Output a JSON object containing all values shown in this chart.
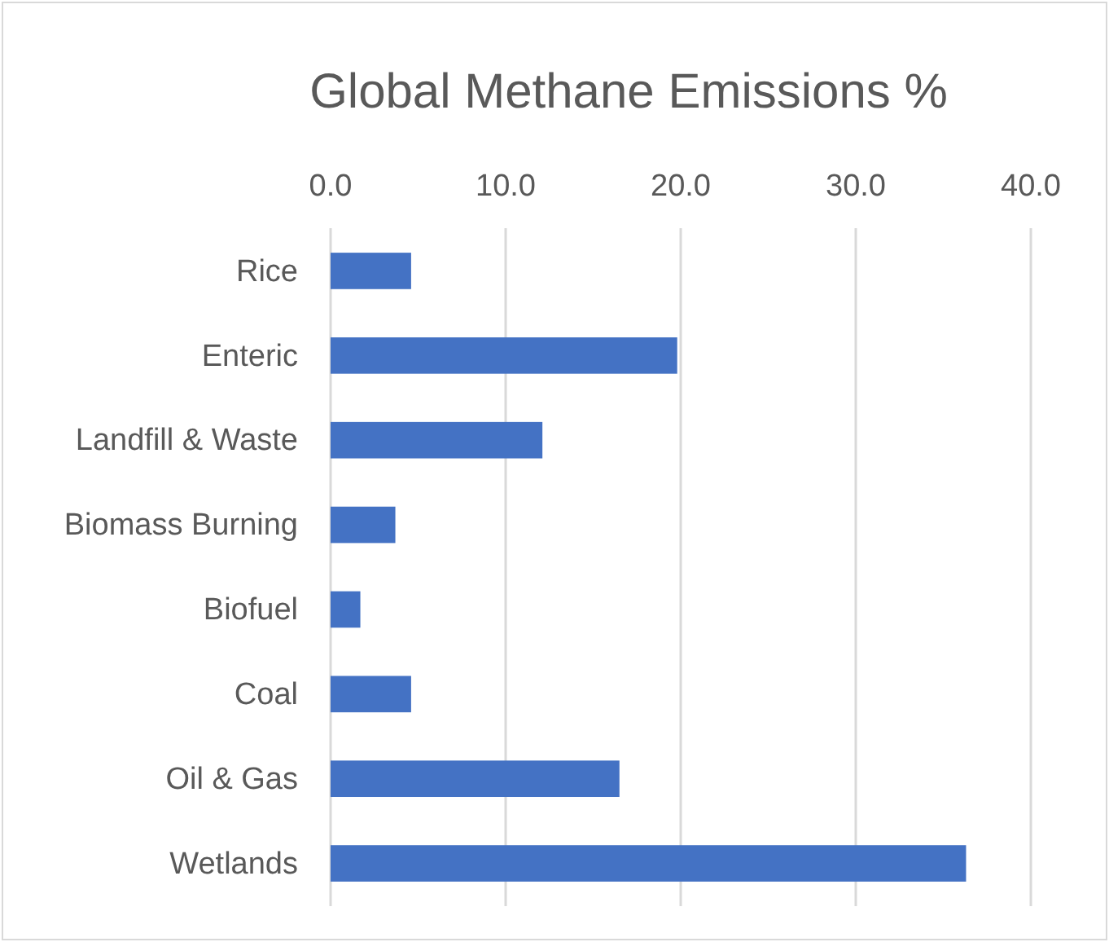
{
  "chart_data": {
    "type": "bar",
    "orientation": "horizontal",
    "title": "Global Methane Emissions %",
    "categories": [
      "Rice",
      "Enteric",
      "Landfill & Waste",
      "Biomass Burning",
      "Biofuel",
      "Coal",
      "Oil & Gas",
      "Wetlands"
    ],
    "values": [
      4.6,
      19.8,
      12.1,
      3.7,
      1.7,
      4.6,
      16.5,
      36.3
    ],
    "color": "#4472c4",
    "xlim": [
      0,
      40
    ],
    "xticks": [
      {
        "value": 0,
        "label": "0.0"
      },
      {
        "value": 10,
        "label": "10.0"
      },
      {
        "value": 20,
        "label": "20.0"
      },
      {
        "value": 30,
        "label": "30.0"
      },
      {
        "value": 40,
        "label": "40.0"
      }
    ],
    "grid": "x"
  }
}
